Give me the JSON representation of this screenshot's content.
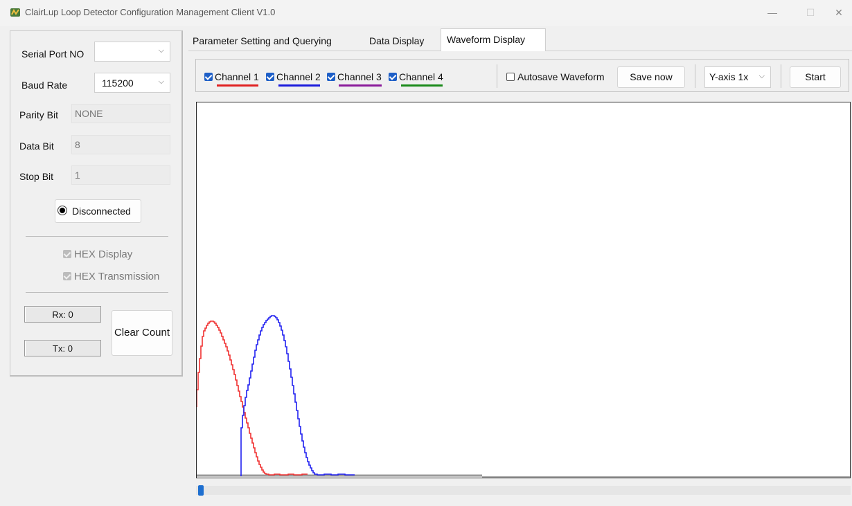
{
  "window": {
    "title": "ClairLup Loop Detector Configuration Management Client V1.0",
    "min_glyph": "—",
    "max_glyph": "☐",
    "close_glyph": "✕"
  },
  "left": {
    "serial_port_label": "Serial Port NO",
    "serial_port_value": "",
    "baud_rate_label": "Baud Rate",
    "baud_rate_value": "115200",
    "parity_label": "Parity Bit",
    "parity_value": "NONE",
    "data_bit_label": "Data Bit",
    "data_bit_value": "8",
    "stop_bit_label": "Stop Bit",
    "stop_bit_value": "1",
    "connect_button": "Disconnected",
    "hex_display": "HEX Display",
    "hex_transmission": "HEX Transmission",
    "rx_label": "Rx: 0",
    "tx_label": "Tx: 0",
    "clear_count": "Clear Count"
  },
  "tabs": [
    "Parameter Setting and Querying",
    "Data Display",
    "Waveform Display"
  ],
  "toolbar": {
    "channels": [
      {
        "label": "Channel 1",
        "color": "#e02020"
      },
      {
        "label": "Channel 2",
        "color": "#1a1adc"
      },
      {
        "label": "Channel 3",
        "color": "#8a1a9a"
      },
      {
        "label": "Channel 4",
        "color": "#1a8a1a"
      }
    ],
    "autosave_label": "Autosave Waveform",
    "save_now": "Save now",
    "y_axis": "Y-axis 1x",
    "start": "Start"
  },
  "colors": {
    "accent": "#1e5fc7",
    "channel1": "#f03030",
    "channel2": "#2020f0",
    "baseline": "#9a9a9a"
  }
}
